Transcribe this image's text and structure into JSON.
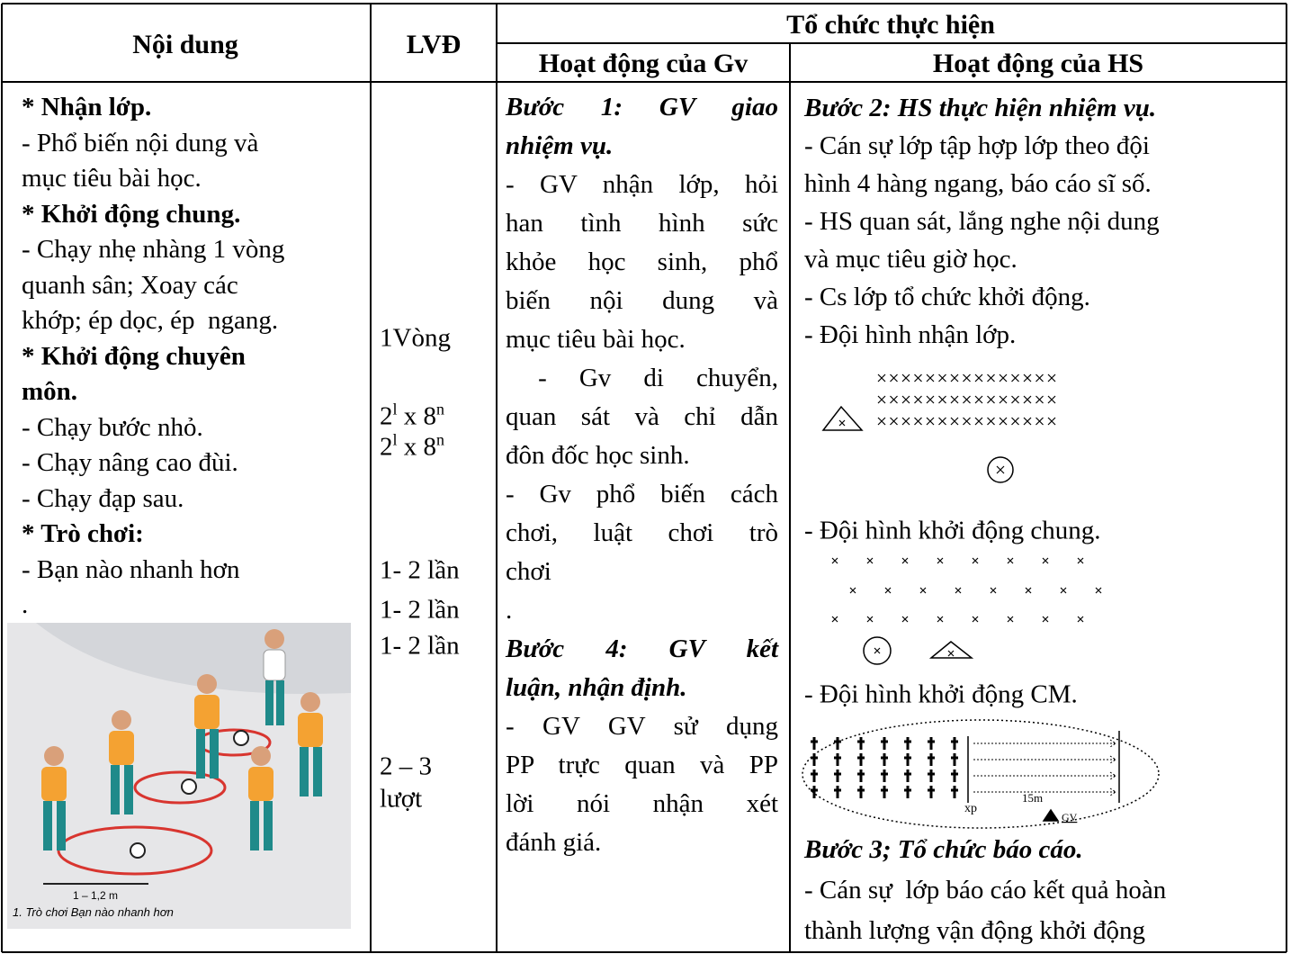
{
  "header": {
    "content": "Nội dung",
    "lvd": "LVĐ",
    "group": "Tổ chức thực hiện",
    "teacher": "Hoạt động của Gv",
    "students": "Hoạt động của HS"
  },
  "content": {
    "lines": [
      "* Nhận lớp.",
      "- Phổ biến nội dung và",
      "mục tiêu bài học.",
      "* Khởi động chung.",
      "- Chạy nhẹ nhàng 1 vòng",
      "quanh sân; Xoay các",
      "khớp; ép dọc, ép  ngang.",
      "* Khởi động chuyên",
      "môn.",
      "- Chạy bước nhỏ.",
      "- Chạy nâng cao đùi.",
      "- Chạy đạp sau.",
      "* Trò chơi:",
      "- Bạn nào nhanh hơn",
      "."
    ]
  },
  "image": {
    "measure": "1 – 1,2 m",
    "caption": "1. Trò chơi Bạn nào nhanh hơn"
  },
  "lvd": [
    {
      "text": "1Vòng"
    },
    {
      "base": "2",
      "sup": "l",
      "rest": " x 8",
      "sup2": "n"
    },
    {
      "base": "2",
      "sup": "l",
      "rest": " x 8",
      "sup2": "n"
    },
    {
      "text": "1- 2 lần"
    },
    {
      "text": "1- 2 lần"
    },
    {
      "text": "1- 2 lần"
    },
    {
      "text": "2 – 3"
    },
    {
      "text": "lượt"
    }
  ],
  "teacher": {
    "lines": [
      "Bước 1: GV giao",
      "nhiệm vụ.",
      "- GV nhận lớp, hỏi",
      "han tình hình sức",
      "khỏe học sinh, phổ",
      "biến nội dung và",
      "mục tiêu bài học.",
      " - Gv di chuyển,",
      "quan sát và chỉ dẫn",
      "đôn đốc học sinh.",
      "- Gv phổ biến cách",
      "chơi, luật chơi trò",
      "chơi",
      ".",
      "Bước 4: GV kết",
      "luận, nhận định.",
      "- GV GV sử dụng",
      "PP trực quan và PP",
      "lời nói nhận xét",
      "đánh giá."
    ]
  },
  "students": {
    "lines": [
      "Bước 2: HS thực hiện nhiệm vụ.",
      "- Cán sự lớp tập hợp lớp theo đội",
      "hình 4 hàng ngang, báo cáo sĩ số.",
      "- HS quan sát, lắng nghe nội dung",
      "và mục tiêu giờ học.",
      "- Cs lớp tổ chức khởi động.",
      "- Đội hình nhận lớp."
    ],
    "formation_general": "- Đội hình khởi động chung.",
    "formation_special": "- Đội hình khởi động CM.",
    "diagram": {
      "start": "xp",
      "distance": "15m",
      "teacher": "GV"
    },
    "report": [
      "Bước 3; Tổ chức báo cáo.",
      "- Cán sự  lớp báo cáo kết quả hoàn",
      "thành lượng vận động khởi động"
    ]
  }
}
